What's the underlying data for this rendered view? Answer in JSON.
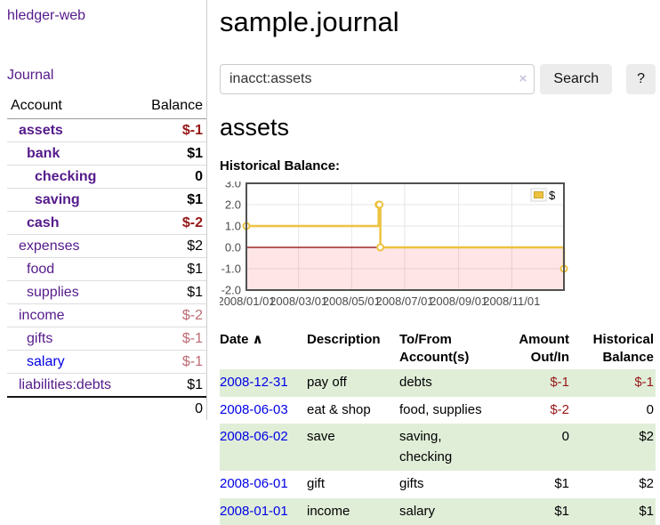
{
  "app": {
    "brand": "hledger-web"
  },
  "sidebar": {
    "journal_link": "Journal",
    "accounts_table": {
      "headers": {
        "account": "Account",
        "balance": "Balance"
      },
      "rows": [
        {
          "label": "assets",
          "balance": "$-1",
          "level": 1,
          "bold": true,
          "link_color": "purple",
          "balance_color": "neg-strong"
        },
        {
          "label": "bank",
          "balance": "$1",
          "level": 2,
          "bold": true,
          "link_color": "purple",
          "balance_color": "normal"
        },
        {
          "label": "checking",
          "balance": "0",
          "level": 3,
          "bold": true,
          "link_color": "purple",
          "balance_color": "normal"
        },
        {
          "label": "saving",
          "balance": "$1",
          "level": 3,
          "bold": true,
          "link_color": "purple",
          "balance_color": "normal"
        },
        {
          "label": "cash",
          "balance": "$-2",
          "level": 2,
          "bold": true,
          "link_color": "purple",
          "balance_color": "neg-strong"
        },
        {
          "label": "expenses",
          "balance": "$2",
          "level": 1,
          "bold": false,
          "link_color": "purple",
          "balance_color": "normal"
        },
        {
          "label": "food",
          "balance": "$1",
          "level": 2,
          "bold": false,
          "link_color": "purple",
          "balance_color": "normal"
        },
        {
          "label": "supplies",
          "balance": "$1",
          "level": 2,
          "bold": false,
          "link_color": "purple",
          "balance_color": "normal"
        },
        {
          "label": "income",
          "balance": "$-2",
          "level": 1,
          "bold": false,
          "link_color": "purple",
          "balance_color": "neg-light"
        },
        {
          "label": "gifts",
          "balance": "$-1",
          "level": 2,
          "bold": false,
          "link_color": "purple",
          "balance_color": "neg-light"
        },
        {
          "label": "salary",
          "balance": "$-1",
          "level": 2,
          "bold": false,
          "link_color": "blue",
          "balance_color": "neg-light"
        },
        {
          "label": "liabilities:debts",
          "balance": "$1",
          "level": 1,
          "bold": false,
          "link_color": "purple",
          "balance_color": "normal"
        }
      ],
      "total": "0"
    }
  },
  "main": {
    "title": "sample.journal",
    "search": {
      "value": "inacct:assets",
      "clear_icon": "×",
      "button_label": "Search",
      "help_label": "?"
    },
    "account_heading": "assets"
  },
  "chart_data": {
    "type": "line",
    "title": "Historical Balance:",
    "step": true,
    "series": [
      {
        "name": "$",
        "color": "#edc240",
        "points": [
          [
            "2008-01-01",
            1.0
          ],
          [
            "2008-06-01",
            2.0
          ],
          [
            "2008-06-02",
            2.0
          ],
          [
            "2008-06-03",
            0.0
          ],
          [
            "2008-12-31",
            -1.0
          ]
        ]
      }
    ],
    "x_range": [
      "2008-01-01",
      "2008-12-31"
    ],
    "ylim": [
      -2.0,
      3.0
    ],
    "y_ticks": [
      "3.0",
      "2.0",
      "1.0",
      "0.0",
      "-1.0",
      "-2.0"
    ],
    "x_ticks": [
      "2008/01/01",
      "2008/03/01",
      "2008/05/01",
      "2008/07/01",
      "2008/09/01",
      "2008/11/01"
    ],
    "legend": {
      "label": "$",
      "position": "top-right"
    },
    "grid": true,
    "colors": {
      "line": "#edc240",
      "marker_fill": "#ffffff",
      "negative_region": "rgba(255,0,0,0.10)",
      "zero_line": "#8b0000",
      "border": "#515151",
      "gridline": "#e6e6e6",
      "axis_text": "#4a4a4a",
      "legend_border": "#d5d5d5"
    }
  },
  "register": {
    "sort_icon": "∧",
    "headers": [
      {
        "label": "Date",
        "sortable": true,
        "align": "left"
      },
      {
        "label": "Description",
        "sortable": false,
        "align": "left"
      },
      {
        "label": "To/From\nAccount(s)",
        "sortable": false,
        "align": "left"
      },
      {
        "label": "Amount\nOut/In",
        "sortable": false,
        "align": "right"
      },
      {
        "label": "Historical\nBalance",
        "sortable": false,
        "align": "right"
      }
    ],
    "rows": [
      {
        "date": "2008-12-31",
        "description": "pay off",
        "accounts": "debts",
        "amount": "$-1",
        "amount_negative": true,
        "balance": "$-1",
        "balance_negative": true
      },
      {
        "date": "2008-06-03",
        "description": "eat & shop",
        "accounts": "food, supplies",
        "amount": "$-2",
        "amount_negative": true,
        "balance": "0",
        "balance_negative": false
      },
      {
        "date": "2008-06-02",
        "description": "save",
        "accounts": "saving, checking",
        "amount": "0",
        "amount_negative": false,
        "balance": "$2",
        "balance_negative": false
      },
      {
        "date": "2008-06-01",
        "description": "gift",
        "accounts": "gifts",
        "amount": "$1",
        "amount_negative": false,
        "balance": "$2",
        "balance_negative": false
      },
      {
        "date": "2008-01-01",
        "description": "income",
        "accounts": "salary",
        "amount": "$1",
        "amount_negative": false,
        "balance": "$1",
        "balance_negative": false
      }
    ]
  },
  "colors": {
    "link_visited_purple": "#551a8b",
    "link_blue": "#0000e6",
    "negative_strong": "#971717",
    "negative_light": "#bd6b73",
    "row_stripe_green": "#e0eed8",
    "button_bg": "#ececec",
    "input_border": "#cccccc"
  }
}
